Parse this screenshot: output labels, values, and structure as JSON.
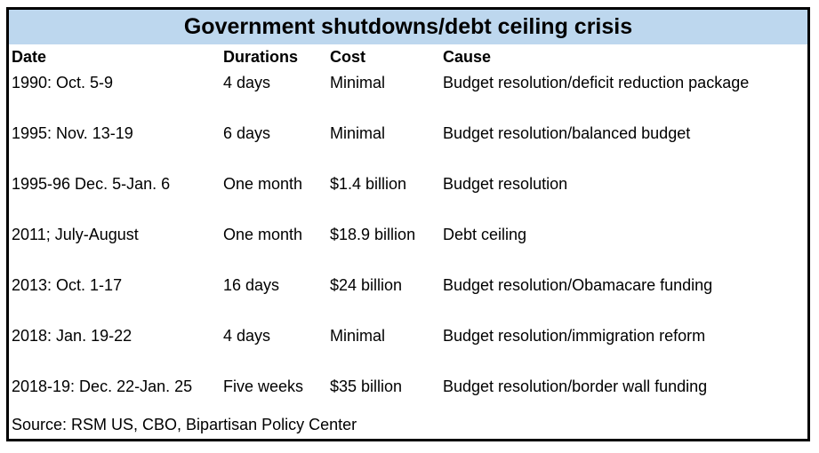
{
  "chart_data": {
    "type": "table",
    "title": "Government shutdowns/debt ceiling crisis",
    "columns": [
      "Date",
      "Durations",
      "Cost",
      "Cause"
    ],
    "rows": [
      [
        "1990: Oct. 5-9",
        "4 days",
        "Minimal",
        "Budget resolution/deficit reduction package"
      ],
      [
        "1995: Nov. 13-19",
        "6 days",
        "Minimal",
        "Budget resolution/balanced budget"
      ],
      [
        "1995-96 Dec. 5-Jan. 6",
        "One month",
        "$1.4 billion",
        "Budget resolution"
      ],
      [
        "2011; July-August",
        "One month",
        "$18.9 billion",
        "Debt ceiling"
      ],
      [
        "2013: Oct. 1-17",
        "16 days",
        "$24 billion",
        "Budget resolution/Obamacare funding"
      ],
      [
        "2018: Jan. 19-22",
        "4 days",
        "Minimal",
        "Budget resolution/immigration reform"
      ],
      [
        "2018-19: Dec. 22-Jan. 25",
        "Five weeks",
        "$35 billion",
        "Budget resolution/border wall funding"
      ]
    ],
    "source": "Source: RSM US, CBO, Bipartisan Policy Center",
    "layout": {
      "legend": "none",
      "grid": "off",
      "title_position": "top-center-banner"
    }
  },
  "colors": {
    "title_bar_bg": "#BDD7EE",
    "border": "#000000",
    "text": "#000000",
    "background": "#FFFFFF"
  }
}
